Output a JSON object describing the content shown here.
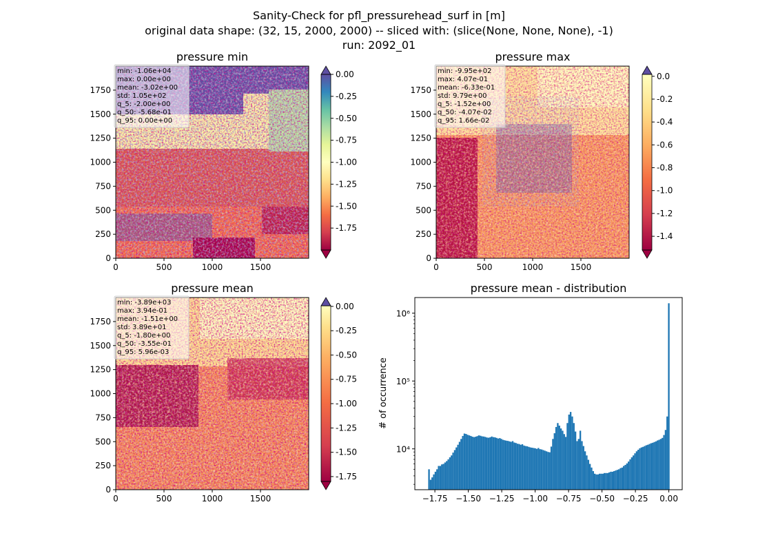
{
  "suptitle": {
    "line1": "Sanity-Check for pfl_pressurehead_surf in [m]",
    "line2": "original data shape: (32, 15, 2000, 2000) -- sliced with: (slice(None, None, None), -1)",
    "line3": "run: 2092_01"
  },
  "chart_data": [
    {
      "type": "heatmap",
      "title": "pressure min",
      "xlabel": "",
      "ylabel": "",
      "xlim": [
        0,
        2000
      ],
      "ylim": [
        0,
        2000
      ],
      "xticks": [
        "0",
        "500",
        "1000",
        "1500"
      ],
      "yticks": [
        "0",
        "250",
        "500",
        "750",
        "1000",
        "1250",
        "1500",
        "1750"
      ],
      "colormap": "Spectral",
      "colorbar": {
        "range": [
          -2.0,
          0.0
        ],
        "ticks": [
          "0.00",
          "-0.25",
          "-0.50",
          "-0.75",
          "-1.00",
          "-1.25",
          "-1.50",
          "-1.75"
        ],
        "extend": "both"
      },
      "stats": [
        "min: -1.06e+04",
        "max: 0.00e+00",
        "mean: -3.02e+00",
        "std: 1.05e+02",
        "q_5: -2.00e+00",
        "q_50: -5.68e-01",
        "q_95: 0.00e+00"
      ]
    },
    {
      "type": "heatmap",
      "title": "pressure max",
      "xlabel": "",
      "ylabel": "",
      "xlim": [
        0,
        2000
      ],
      "ylim": [
        0,
        2000
      ],
      "xticks": [
        "0",
        "500",
        "1000",
        "1500"
      ],
      "yticks": [
        "0",
        "250",
        "500",
        "750",
        "1000",
        "1250",
        "1500",
        "1750"
      ],
      "colormap": "Spectral",
      "colorbar": {
        "range": [
          -1.52,
          0.0166
        ],
        "ticks": [
          "0.0",
          "-0.2",
          "-0.4",
          "-0.6",
          "-0.8",
          "-1.0",
          "-1.2",
          "-1.4"
        ],
        "extend": "both"
      },
      "stats": [
        "min: -9.95e+02",
        "max: 4.07e-01",
        "mean: -6.33e-01",
        "std: 9.79e+00",
        "q_5: -1.52e+00",
        "q_50: -4.07e-02",
        "q_95: 1.66e-02"
      ]
    },
    {
      "type": "heatmap",
      "title": "pressure mean",
      "xlabel": "",
      "ylabel": "",
      "xlim": [
        0,
        2000
      ],
      "ylim": [
        0,
        2000
      ],
      "xticks": [
        "0",
        "500",
        "1000",
        "1500"
      ],
      "yticks": [
        "0",
        "250",
        "500",
        "750",
        "1000",
        "1250",
        "1500",
        "1750"
      ],
      "colormap": "Spectral",
      "colorbar": {
        "range": [
          -1.8,
          0.00596
        ],
        "ticks": [
          "0.00",
          "-0.25",
          "-0.50",
          "-0.75",
          "-1.00",
          "-1.25",
          "-1.50",
          "-1.75"
        ],
        "extend": "both"
      },
      "stats": [
        "min: -3.89e+03",
        "max: 3.94e-01",
        "mean: -1.51e+00",
        "std: 3.89e+01",
        "q_5: -1.80e+00",
        "q_50: -3.55e-01",
        "q_95: 5.96e-03"
      ]
    },
    {
      "type": "bar",
      "title": "pressure mean - distribution",
      "xlabel": "",
      "ylabel": "# of occurrence",
      "xlim": [
        -1.9,
        0.1
      ],
      "ylim": [
        2500,
        1700000
      ],
      "yscale": "log",
      "xticks": [
        "−1.75",
        "−1.50",
        "−1.25",
        "−1.00",
        "−0.75",
        "−0.50",
        "−0.25",
        "0.00"
      ],
      "yticks": [
        "10⁴",
        "10⁵",
        "10⁶"
      ],
      "color": "#1f77b4",
      "bins": {
        "start": -1.8,
        "end": 0.0059,
        "counts": [
          5000,
          3500,
          3800,
          4200,
          4600,
          5000,
          5600,
          5600,
          5900,
          6000,
          6300,
          6600,
          7000,
          7500,
          8000,
          8800,
          9600,
          10500,
          11500,
          12700,
          14000,
          15500,
          16800,
          16600,
          16100,
          15800,
          15500,
          15100,
          14900,
          15100,
          15400,
          15800,
          15600,
          15300,
          15200,
          15000,
          14700,
          14600,
          14800,
          15200,
          14900,
          14800,
          14500,
          14200,
          14400,
          14000,
          13600,
          13400,
          13200,
          13100,
          12900,
          12700,
          13000,
          12400,
          12200,
          11900,
          11800,
          11500,
          11700,
          11200,
          11000,
          10900,
          10700,
          10500,
          10400,
          10300,
          10200,
          10000,
          10300,
          9900,
          9800,
          9600,
          9400,
          9200,
          9000,
          8900,
          10800,
          14000,
          17000,
          21000,
          24000,
          22000,
          20000,
          18500,
          16500,
          15000,
          24000,
          32000,
          35000,
          30000,
          24000,
          18000,
          13000,
          14000,
          18500,
          13000,
          11000,
          9200,
          8000,
          6900,
          6000,
          5300,
          4700,
          4300,
          4200,
          4200,
          4300,
          4300,
          4300,
          4400,
          4400,
          4400,
          4500,
          4600,
          4600,
          4700,
          4800,
          4900,
          5000,
          5200,
          5300,
          5600,
          5800,
          6100,
          6500,
          7000,
          7500,
          8000,
          8600,
          9200,
          9700,
          10200,
          10500,
          10700,
          11000,
          11300,
          11500,
          11800,
          12100,
          12300,
          12600,
          12900,
          13300,
          13600,
          14000,
          14500,
          16000,
          19000,
          30000,
          1400000
        ]
      }
    }
  ]
}
